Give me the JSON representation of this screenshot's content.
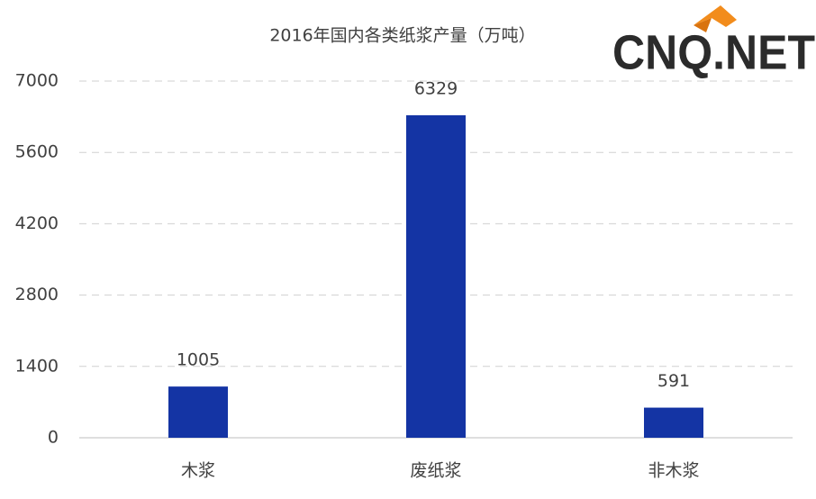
{
  "chart_data": {
    "type": "bar",
    "title": "2016年国内各类纸浆产量（万吨）",
    "watermark": "CNQ.NET",
    "categories": [
      "木浆",
      "废纸浆",
      "非木浆"
    ],
    "values": [
      1005,
      6329,
      591
    ],
    "color": "#1434a4",
    "ylim": [
      0,
      7000
    ],
    "yticks": [
      0,
      1400,
      2800,
      4200,
      5600,
      7000
    ],
    "grid": true
  }
}
